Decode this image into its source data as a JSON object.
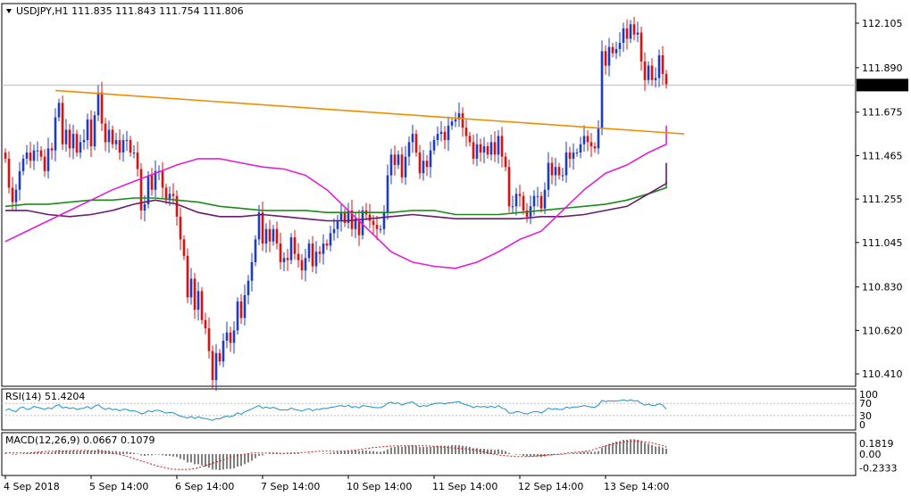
{
  "chart_data": {
    "type": "candlestick",
    "main": {
      "header": "USDJPY,H1  111.835 111.843 111.754 111.806",
      "last_price": "111.806",
      "colors": {
        "bull": "#1c3cc8",
        "bear": "#e01010",
        "trendline": "#f08c00",
        "sma_fast": "#e020d8",
        "sma_mid": "#6a1a6a",
        "sma_slow": "#1e8a1e",
        "last_line": "#bdbdbd"
      },
      "y_ticks": [
        "112.105",
        "111.890",
        "111.675",
        "111.465",
        "111.255",
        "111.045",
        "110.830",
        "110.620",
        "110.410"
      ],
      "y_tick_values": [
        112.105,
        111.89,
        111.675,
        111.465,
        111.255,
        111.045,
        110.83,
        110.62,
        110.41
      ],
      "ylim": [
        110.35,
        112.2
      ],
      "x_labels": [
        "4 Sep 2018",
        "5 Sep 14:00",
        "6 Sep 14:00",
        "7 Sep 14:00",
        "10 Sep 14:00",
        "11 Sep 14:00",
        "12 Sep 14:00",
        "13 Sep 14:00"
      ],
      "x_label_index": [
        0,
        24,
        48,
        72,
        96,
        120,
        144,
        168
      ],
      "close": [
        111.45,
        111.31,
        111.24,
        111.3,
        111.39,
        111.45,
        111.48,
        111.44,
        111.49,
        111.49,
        111.46,
        111.39,
        111.5,
        111.49,
        111.65,
        111.72,
        111.52,
        111.59,
        111.5,
        111.57,
        111.48,
        111.53,
        111.54,
        111.64,
        111.51,
        111.66,
        111.77,
        111.62,
        111.53,
        111.59,
        111.52,
        111.54,
        111.48,
        111.54,
        111.54,
        111.48,
        111.48,
        111.4,
        111.2,
        111.23,
        111.37,
        111.3,
        111.39,
        111.39,
        111.31,
        111.25,
        111.28,
        111.27,
        111.17,
        111.06,
        110.98,
        110.78,
        110.87,
        110.72,
        110.81,
        110.67,
        110.63,
        110.52,
        110.38,
        110.51,
        110.47,
        110.57,
        110.61,
        110.56,
        110.62,
        110.76,
        110.68,
        110.79,
        110.86,
        110.95,
        111.06,
        111.19,
        111.04,
        111.11,
        111.05,
        111.11,
        111.04,
        110.95,
        110.97,
        110.96,
        111.07,
        110.99,
        110.96,
        110.91,
        110.97,
        111.04,
        110.93,
        111.0,
        110.99,
        111.04,
        111.03,
        111.09,
        111.11,
        111.15,
        111.19,
        111.14,
        111.2,
        111.11,
        111.16,
        111.08,
        111.2,
        111.18,
        111.15,
        111.13,
        111.11,
        111.11,
        111.19,
        111.37,
        111.47,
        111.42,
        111.47,
        111.36,
        111.46,
        111.53,
        111.57,
        111.48,
        111.38,
        111.44,
        111.41,
        111.49,
        111.54,
        111.57,
        111.58,
        111.54,
        111.61,
        111.63,
        111.64,
        111.67,
        111.6,
        111.56,
        111.53,
        111.45,
        111.52,
        111.48,
        111.51,
        111.47,
        111.53,
        111.47,
        111.56,
        111.46,
        111.41,
        111.22,
        111.22,
        111.28,
        111.27,
        111.2,
        111.17,
        111.22,
        111.27,
        111.27,
        111.21,
        111.3,
        111.43,
        111.37,
        111.41,
        111.37,
        111.37,
        111.48,
        111.45,
        111.48,
        111.48,
        111.52,
        111.56,
        111.53,
        111.51,
        111.5,
        111.6,
        111.97,
        111.9,
        111.99,
        111.96,
        111.98,
        112.01,
        112.08,
        112.03,
        112.1,
        112.05,
        112.06,
        111.92,
        111.83,
        111.9,
        111.83,
        111.84,
        111.95,
        111.86,
        111.81
      ],
      "sma_fast": [
        111.05,
        111.1,
        111.15,
        111.2,
        111.25,
        111.3,
        111.34,
        111.38,
        111.42,
        111.45,
        111.45,
        111.43,
        111.41,
        111.4,
        111.37,
        111.3,
        111.2,
        111.1,
        111.0,
        110.95,
        110.93,
        110.92,
        110.95,
        111.0,
        111.06,
        111.1,
        111.2,
        111.3,
        111.38,
        111.42,
        111.48,
        111.52,
        111.56,
        111.61
      ],
      "sma_mid": [
        111.2,
        111.2,
        111.18,
        111.17,
        111.18,
        111.2,
        111.23,
        111.25,
        111.23,
        111.19,
        111.17,
        111.17,
        111.18,
        111.17,
        111.16,
        111.15,
        111.15,
        111.16,
        111.17,
        111.18,
        111.17,
        111.16,
        111.16,
        111.16,
        111.16,
        111.17,
        111.17,
        111.18,
        111.2,
        111.22,
        111.28,
        111.33,
        111.38,
        111.43
      ],
      "sma_slow": [
        111.22,
        111.23,
        111.23,
        111.24,
        111.25,
        111.25,
        111.26,
        111.26,
        111.25,
        111.24,
        111.22,
        111.21,
        111.2,
        111.2,
        111.2,
        111.19,
        111.19,
        111.19,
        111.19,
        111.2,
        111.2,
        111.18,
        111.18,
        111.18,
        111.19,
        111.2,
        111.21,
        111.22,
        111.23,
        111.25,
        111.28,
        111.31,
        111.32,
        111.34
      ],
      "trendline": [
        {
          "i": 14,
          "v": 111.78
        },
        {
          "i": 190,
          "v": 111.57
        }
      ]
    },
    "rsi": {
      "header": "RSI(14) 51.4204",
      "color": "#1e90c8",
      "levels": [
        "100",
        "70",
        "30",
        "0"
      ],
      "level_values": [
        100,
        70,
        30,
        0
      ],
      "values": [
        48,
        52,
        46,
        43,
        55,
        58,
        50,
        52,
        60,
        57,
        54,
        50,
        56,
        52,
        62,
        66,
        55,
        58,
        53,
        56,
        50,
        53,
        54,
        60,
        52,
        61,
        66,
        56,
        50,
        55,
        49,
        51,
        46,
        51,
        50,
        45,
        46,
        42,
        36,
        38,
        46,
        42,
        47,
        47,
        42,
        38,
        40,
        39,
        33,
        28,
        25,
        22,
        27,
        20,
        26,
        22,
        20,
        17,
        14,
        20,
        19,
        25,
        28,
        26,
        30,
        39,
        34,
        42,
        47,
        52,
        58,
        63,
        54,
        58,
        54,
        57,
        53,
        48,
        49,
        48,
        55,
        50,
        48,
        45,
        49,
        53,
        46,
        51,
        50,
        54,
        53,
        57,
        58,
        61,
        63,
        59,
        64,
        57,
        60,
        55,
        63,
        61,
        59,
        57,
        56,
        56,
        61,
        71,
        74,
        69,
        72,
        64,
        69,
        73,
        75,
        66,
        59,
        63,
        61,
        66,
        69,
        71,
        71,
        68,
        72,
        73,
        74,
        76,
        69,
        65,
        62,
        56,
        61,
        58,
        60,
        57,
        61,
        56,
        63,
        55,
        51,
        38,
        38,
        43,
        42,
        37,
        35,
        39,
        43,
        43,
        38,
        45,
        55,
        50,
        53,
        50,
        50,
        58,
        55,
        58,
        58,
        60,
        63,
        60,
        58,
        57,
        64,
        80,
        76,
        79,
        77,
        78,
        79,
        82,
        78,
        82,
        78,
        79,
        70,
        64,
        68,
        63,
        64,
        69,
        64,
        51
      ]
    },
    "macd": {
      "header": "MACD(12,26,9) 0.0667 0.1079",
      "levels": [
        "0.1819",
        "0.00",
        "-0.2333"
      ],
      "level_values": [
        0.1819,
        0,
        -0.2333
      ],
      "hist": [
        0.01,
        0.0,
        -0.01,
        -0.01,
        0.0,
        0.01,
        0.02,
        0.02,
        0.03,
        0.03,
        0.03,
        0.02,
        0.03,
        0.03,
        0.05,
        0.07,
        0.06,
        0.06,
        0.05,
        0.06,
        0.05,
        0.05,
        0.05,
        0.06,
        0.05,
        0.06,
        0.08,
        0.07,
        0.06,
        0.06,
        0.05,
        0.05,
        0.04,
        0.04,
        0.04,
        0.03,
        0.02,
        0.01,
        -0.02,
        -0.03,
        -0.02,
        -0.02,
        -0.01,
        -0.01,
        -0.02,
        -0.03,
        -0.03,
        -0.04,
        -0.05,
        -0.08,
        -0.1,
        -0.14,
        -0.14,
        -0.17,
        -0.17,
        -0.19,
        -0.21,
        -0.23,
        -0.26,
        -0.26,
        -0.27,
        -0.26,
        -0.25,
        -0.25,
        -0.24,
        -0.21,
        -0.2,
        -0.17,
        -0.14,
        -0.11,
        -0.07,
        -0.03,
        -0.02,
        0.0,
        0.01,
        0.02,
        0.02,
        0.01,
        0.01,
        0.01,
        0.02,
        0.02,
        0.01,
        0.0,
        0.0,
        0.01,
        0.0,
        0.0,
        0.0,
        0.01,
        0.01,
        0.02,
        0.03,
        0.04,
        0.05,
        0.05,
        0.06,
        0.05,
        0.06,
        0.05,
        0.06,
        0.06,
        0.05,
        0.05,
        0.04,
        0.04,
        0.05,
        0.08,
        0.11,
        0.12,
        0.13,
        0.12,
        0.13,
        0.14,
        0.15,
        0.14,
        0.12,
        0.12,
        0.12,
        0.12,
        0.13,
        0.14,
        0.14,
        0.14,
        0.14,
        0.15,
        0.15,
        0.15,
        0.14,
        0.13,
        0.12,
        0.1,
        0.1,
        0.09,
        0.09,
        0.08,
        0.08,
        0.07,
        0.08,
        0.07,
        0.05,
        0.02,
        0.0,
        -0.01,
        -0.01,
        -0.03,
        -0.04,
        -0.04,
        -0.04,
        -0.04,
        -0.05,
        -0.04,
        -0.02,
        -0.02,
        -0.01,
        -0.01,
        -0.01,
        0.01,
        0.01,
        0.02,
        0.02,
        0.03,
        0.04,
        0.04,
        0.04,
        0.04,
        0.05,
        0.11,
        0.14,
        0.17,
        0.19,
        0.21,
        0.22,
        0.24,
        0.24,
        0.25,
        0.25,
        0.24,
        0.22,
        0.19,
        0.17,
        0.15,
        0.13,
        0.13,
        0.11,
        0.09
      ],
      "signal": [
        0.02,
        0.02,
        0.02,
        0.02,
        0.03,
        0.04,
        0.05,
        0.05,
        0.05,
        0.06,
        0.06,
        0.06,
        0.05,
        0.04,
        0.02,
        0.0,
        -0.03,
        -0.07,
        -0.11,
        -0.15,
        -0.19,
        -0.22,
        -0.25,
        -0.26,
        -0.26,
        -0.25,
        -0.22,
        -0.18,
        -0.14,
        -0.1,
        -0.06,
        -0.02,
        0.0,
        0.02,
        0.02,
        0.02,
        0.02,
        0.01,
        0.02,
        0.02,
        0.03,
        0.04,
        0.05,
        0.05,
        0.05,
        0.05,
        0.06,
        0.07,
        0.09,
        0.11,
        0.12,
        0.13,
        0.14,
        0.14,
        0.14,
        0.14,
        0.14,
        0.13,
        0.12,
        0.11,
        0.1,
        0.09,
        0.08,
        0.06,
        0.03,
        0.0,
        -0.02,
        -0.03,
        -0.04,
        -0.04,
        -0.04,
        -0.03,
        -0.02,
        -0.01,
        0.0,
        0.02,
        0.03,
        0.04,
        0.06,
        0.1,
        0.14,
        0.17,
        0.19,
        0.21,
        0.22,
        0.21,
        0.19,
        0.16,
        0.13,
        0.11
      ]
    }
  }
}
